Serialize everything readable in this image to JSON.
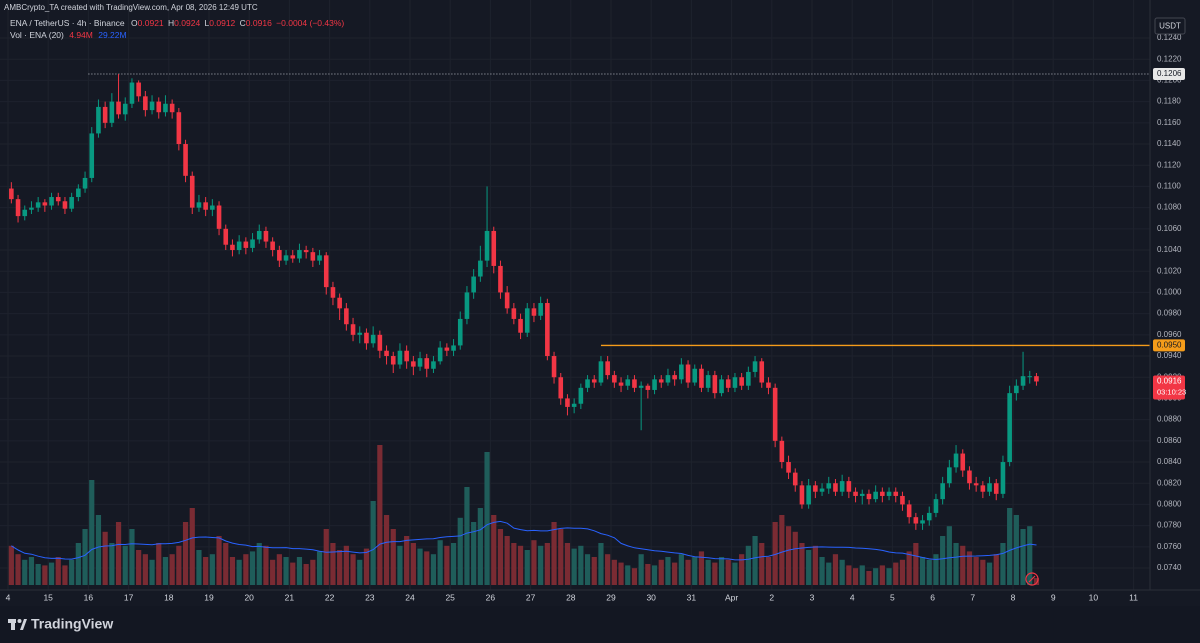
{
  "header": {
    "attribution": "AMBCrypto_TA created with TradingView.com, Apr 08, 2026 12:49 UTC"
  },
  "footer": {
    "brand": "TradingView"
  },
  "chart_data": {
    "type": "candlestick",
    "legend": {
      "symbol": "ENA / TetherUS · 4h · Binance",
      "open_key": "O",
      "open": "0.0921",
      "high_key": "H",
      "high": "0.0924",
      "low_key": "L",
      "low": "0.0912",
      "close_key": "C",
      "close": "0.0916",
      "change": "−0.0004 (−0.43%)"
    },
    "volume_legend": {
      "name": "Vol · ENA (20)",
      "value": "4.94M",
      "ma": "29.22M"
    },
    "currency": "USDT",
    "up_color": "#089981",
    "down_color": "#f23645",
    "volume_up_color": "#1f5d5a",
    "volume_down_color": "#7a2b33",
    "ma_color": "#2962ff",
    "high_line": {
      "value": 0.1206,
      "label": "0.1206"
    },
    "resistance": {
      "value": 0.095,
      "label": "0.0950",
      "color": "#f59c1a"
    },
    "last_price": {
      "value": 0.0916,
      "label": "0.0916",
      "countdown": "03:10:23"
    },
    "x_labels": [
      "4",
      "15",
      "16",
      "17",
      "18",
      "19",
      "20",
      "21",
      "22",
      "23",
      "24",
      "25",
      "26",
      "27",
      "28",
      "29",
      "30",
      "31",
      "Apr",
      "2",
      "3",
      "4",
      "5",
      "6",
      "7",
      "8",
      "9",
      "10",
      "11"
    ],
    "ylim": [
      0.0724,
      0.1257
    ],
    "yticks": [
      {
        "value": 0.124,
        "label": "0.1240"
      },
      {
        "value": 0.122,
        "label": "0.1220"
      },
      {
        "value": 0.12,
        "label": "0.1200"
      },
      {
        "value": 0.118,
        "label": "0.1180"
      },
      {
        "value": 0.116,
        "label": "0.1160"
      },
      {
        "value": 0.114,
        "label": "0.1140"
      },
      {
        "value": 0.112,
        "label": "0.1120"
      },
      {
        "value": 0.11,
        "label": "0.1100"
      },
      {
        "value": 0.108,
        "label": "0.1080"
      },
      {
        "value": 0.106,
        "label": "0.1060"
      },
      {
        "value": 0.104,
        "label": "0.1040"
      },
      {
        "value": 0.102,
        "label": "0.1020"
      },
      {
        "value": 0.1,
        "label": "0.1000"
      },
      {
        "value": 0.098,
        "label": "0.0980"
      },
      {
        "value": 0.096,
        "label": "0.0960"
      },
      {
        "value": 0.094,
        "label": "0.0940"
      },
      {
        "value": 0.092,
        "label": "0.0920"
      },
      {
        "value": 0.09,
        "label": "0.0900"
      },
      {
        "value": 0.088,
        "label": "0.0880"
      },
      {
        "value": 0.086,
        "label": "0.0860"
      },
      {
        "value": 0.084,
        "label": "0.0840"
      },
      {
        "value": 0.082,
        "label": "0.0820"
      },
      {
        "value": 0.08,
        "label": "0.0800"
      },
      {
        "value": 0.078,
        "label": "0.0780"
      },
      {
        "value": 0.076,
        "label": "0.0760"
      },
      {
        "value": 0.074,
        "label": "0.0740"
      }
    ],
    "candles": [
      [
        0.1098,
        0.1104,
        0.1084,
        0.1088
      ],
      [
        0.1088,
        0.1092,
        0.1066,
        0.1072
      ],
      [
        0.1072,
        0.1082,
        0.1068,
        0.1078
      ],
      [
        0.1078,
        0.1086,
        0.1074,
        0.108
      ],
      [
        0.108,
        0.109,
        0.1076,
        0.1085
      ],
      [
        0.1085,
        0.1088,
        0.1076,
        0.1082
      ],
      [
        0.1082,
        0.1094,
        0.1078,
        0.109
      ],
      [
        0.109,
        0.1094,
        0.1082,
        0.1086
      ],
      [
        0.1086,
        0.109,
        0.1074,
        0.1079
      ],
      [
        0.1079,
        0.1094,
        0.1076,
        0.109
      ],
      [
        0.109,
        0.1102,
        0.1086,
        0.1098
      ],
      [
        0.1098,
        0.1114,
        0.1094,
        0.1108
      ],
      [
        0.1108,
        0.1156,
        0.1104,
        0.115
      ],
      [
        0.115,
        0.1182,
        0.1146,
        0.1175
      ],
      [
        0.1175,
        0.118,
        0.1155,
        0.116
      ],
      [
        0.116,
        0.1188,
        0.1156,
        0.118
      ],
      [
        0.118,
        0.1206,
        0.1164,
        0.1168
      ],
      [
        0.1168,
        0.1184,
        0.1162,
        0.1178
      ],
      [
        0.1178,
        0.1202,
        0.1174,
        0.1198
      ],
      [
        0.1198,
        0.12,
        0.118,
        0.1185
      ],
      [
        0.1185,
        0.119,
        0.1166,
        0.1172
      ],
      [
        0.1172,
        0.1186,
        0.1168,
        0.118
      ],
      [
        0.118,
        0.1184,
        0.1164,
        0.117
      ],
      [
        0.117,
        0.1186,
        0.1166,
        0.1178
      ],
      [
        0.1178,
        0.1182,
        0.1164,
        0.117
      ],
      [
        0.117,
        0.1174,
        0.1134,
        0.114
      ],
      [
        0.114,
        0.1144,
        0.1104,
        0.111
      ],
      [
        0.111,
        0.1114,
        0.1074,
        0.108
      ],
      [
        0.108,
        0.1092,
        0.1076,
        0.1085
      ],
      [
        0.1085,
        0.109,
        0.1072,
        0.1078
      ],
      [
        0.1078,
        0.1088,
        0.1072,
        0.1082
      ],
      [
        0.1082,
        0.1086,
        0.1054,
        0.106
      ],
      [
        0.106,
        0.1064,
        0.104,
        0.1045
      ],
      [
        0.1045,
        0.105,
        0.1034,
        0.104
      ],
      [
        0.104,
        0.1054,
        0.1036,
        0.1048
      ],
      [
        0.1048,
        0.1052,
        0.1036,
        0.1042
      ],
      [
        0.1042,
        0.1056,
        0.1038,
        0.105
      ],
      [
        0.105,
        0.1064,
        0.1046,
        0.1058
      ],
      [
        0.1058,
        0.1062,
        0.1042,
        0.1048
      ],
      [
        0.1048,
        0.1052,
        0.1034,
        0.104
      ],
      [
        0.104,
        0.1044,
        0.1024,
        0.103
      ],
      [
        0.103,
        0.104,
        0.1026,
        0.1035
      ],
      [
        0.1035,
        0.104,
        0.1028,
        0.1032
      ],
      [
        0.1032,
        0.1046,
        0.1028,
        0.104
      ],
      [
        0.104,
        0.1044,
        0.1032,
        0.1038
      ],
      [
        0.1038,
        0.1042,
        0.1024,
        0.103
      ],
      [
        0.103,
        0.104,
        0.1026,
        0.1035
      ],
      [
        0.1035,
        0.1038,
        0.0998,
        0.1005
      ],
      [
        0.1005,
        0.101,
        0.0988,
        0.0995
      ],
      [
        0.0995,
        0.0999,
        0.0974,
        0.0985
      ],
      [
        0.0985,
        0.099,
        0.0964,
        0.097
      ],
      [
        0.097,
        0.0976,
        0.0954,
        0.096
      ],
      [
        0.096,
        0.0968,
        0.0952,
        0.0962
      ],
      [
        0.0962,
        0.0966,
        0.0946,
        0.0952
      ],
      [
        0.0952,
        0.0968,
        0.0948,
        0.096
      ],
      [
        0.096,
        0.0964,
        0.0938,
        0.0945
      ],
      [
        0.0945,
        0.095,
        0.0932,
        0.094
      ],
      [
        0.094,
        0.0944,
        0.0924,
        0.0932
      ],
      [
        0.0932,
        0.0952,
        0.0928,
        0.0945
      ],
      [
        0.0945,
        0.095,
        0.0928,
        0.0935
      ],
      [
        0.0935,
        0.094,
        0.0922,
        0.093
      ],
      [
        0.093,
        0.0944,
        0.0926,
        0.0938
      ],
      [
        0.0938,
        0.0942,
        0.092,
        0.0928
      ],
      [
        0.0928,
        0.094,
        0.0924,
        0.0935
      ],
      [
        0.0935,
        0.0954,
        0.0932,
        0.0948
      ],
      [
        0.0948,
        0.0952,
        0.094,
        0.0945
      ],
      [
        0.0945,
        0.0956,
        0.094,
        0.095
      ],
      [
        0.095,
        0.0982,
        0.0946,
        0.0975
      ],
      [
        0.0975,
        0.1006,
        0.097,
        0.1
      ],
      [
        0.1,
        0.1022,
        0.0994,
        0.1015
      ],
      [
        0.1015,
        0.1044,
        0.101,
        0.103
      ],
      [
        0.103,
        0.11,
        0.1024,
        0.1058
      ],
      [
        0.1058,
        0.1062,
        0.1018,
        0.1025
      ],
      [
        0.1025,
        0.103,
        0.0994,
        0.1
      ],
      [
        0.1,
        0.1006,
        0.098,
        0.0985
      ],
      [
        0.0985,
        0.099,
        0.097,
        0.0975
      ],
      [
        0.0975,
        0.098,
        0.0956,
        0.0962
      ],
      [
        0.0962,
        0.099,
        0.0958,
        0.0985
      ],
      [
        0.0985,
        0.099,
        0.0972,
        0.0978
      ],
      [
        0.0978,
        0.0996,
        0.0974,
        0.099
      ],
      [
        0.099,
        0.0994,
        0.0936,
        0.094
      ],
      [
        0.094,
        0.0944,
        0.0914,
        0.092
      ],
      [
        0.092,
        0.0924,
        0.0894,
        0.09
      ],
      [
        0.09,
        0.0904,
        0.0884,
        0.0892
      ],
      [
        0.0892,
        0.09,
        0.0886,
        0.0895
      ],
      [
        0.0895,
        0.0914,
        0.089,
        0.091
      ],
      [
        0.091,
        0.0922,
        0.0906,
        0.0918
      ],
      [
        0.0918,
        0.0922,
        0.091,
        0.0915
      ],
      [
        0.0915,
        0.094,
        0.0912,
        0.0935
      ],
      [
        0.0935,
        0.094,
        0.0918,
        0.0922
      ],
      [
        0.0922,
        0.0926,
        0.091,
        0.0915
      ],
      [
        0.0915,
        0.092,
        0.0906,
        0.0912
      ],
      [
        0.0912,
        0.0922,
        0.0908,
        0.0918
      ],
      [
        0.0918,
        0.0922,
        0.0906,
        0.091
      ],
      [
        0.091,
        0.0916,
        0.087,
        0.0912
      ],
      [
        0.0912,
        0.0914,
        0.09,
        0.0908
      ],
      [
        0.0908,
        0.0922,
        0.0904,
        0.0918
      ],
      [
        0.0918,
        0.0922,
        0.091,
        0.0915
      ],
      [
        0.0915,
        0.0928,
        0.0912,
        0.0922
      ],
      [
        0.0922,
        0.0926,
        0.0912,
        0.0918
      ],
      [
        0.0918,
        0.0938,
        0.0914,
        0.0932
      ],
      [
        0.0932,
        0.0936,
        0.091,
        0.0915
      ],
      [
        0.0915,
        0.0932,
        0.0912,
        0.0928
      ],
      [
        0.0928,
        0.0932,
        0.0906,
        0.091
      ],
      [
        0.091,
        0.0926,
        0.0906,
        0.0922
      ],
      [
        0.0922,
        0.0926,
        0.09,
        0.0905
      ],
      [
        0.0905,
        0.0922,
        0.0902,
        0.0918
      ],
      [
        0.0918,
        0.0922,
        0.0906,
        0.091
      ],
      [
        0.091,
        0.0924,
        0.0906,
        0.092
      ],
      [
        0.092,
        0.0924,
        0.0908,
        0.0912
      ],
      [
        0.0912,
        0.093,
        0.0908,
        0.0925
      ],
      [
        0.0925,
        0.094,
        0.092,
        0.0935
      ],
      [
        0.0935,
        0.0938,
        0.091,
        0.0915
      ],
      [
        0.0915,
        0.092,
        0.0904,
        0.091
      ],
      [
        0.091,
        0.0914,
        0.0854,
        0.086
      ],
      [
        0.086,
        0.0864,
        0.0834,
        0.084
      ],
      [
        0.084,
        0.0846,
        0.0824,
        0.083
      ],
      [
        0.083,
        0.0834,
        0.0812,
        0.0818
      ],
      [
        0.0818,
        0.0822,
        0.0796,
        0.08
      ],
      [
        0.08,
        0.0824,
        0.0796,
        0.0818
      ],
      [
        0.0818,
        0.0822,
        0.0806,
        0.0812
      ],
      [
        0.0812,
        0.082,
        0.0808,
        0.0815
      ],
      [
        0.0815,
        0.0826,
        0.081,
        0.082
      ],
      [
        0.082,
        0.0824,
        0.0808,
        0.0812
      ],
      [
        0.0812,
        0.0828,
        0.0808,
        0.0822
      ],
      [
        0.0822,
        0.0826,
        0.0806,
        0.0812
      ],
      [
        0.0812,
        0.0816,
        0.0802,
        0.0808
      ],
      [
        0.0808,
        0.0814,
        0.08,
        0.081
      ],
      [
        0.081,
        0.0814,
        0.08,
        0.0805
      ],
      [
        0.0805,
        0.0818,
        0.0802,
        0.0812
      ],
      [
        0.0812,
        0.0816,
        0.0802,
        0.0808
      ],
      [
        0.0808,
        0.0816,
        0.0804,
        0.0812
      ],
      [
        0.0812,
        0.0816,
        0.0802,
        0.0808
      ],
      [
        0.0808,
        0.0812,
        0.0794,
        0.08
      ],
      [
        0.08,
        0.0804,
        0.0782,
        0.0788
      ],
      [
        0.0788,
        0.0792,
        0.0776,
        0.0782
      ],
      [
        0.0782,
        0.079,
        0.0776,
        0.0785
      ],
      [
        0.0785,
        0.0798,
        0.078,
        0.0792
      ],
      [
        0.0792,
        0.081,
        0.0788,
        0.0805
      ],
      [
        0.0805,
        0.0826,
        0.08,
        0.082
      ],
      [
        0.082,
        0.0842,
        0.0816,
        0.0835
      ],
      [
        0.0835,
        0.0856,
        0.083,
        0.0848
      ],
      [
        0.0848,
        0.0852,
        0.0826,
        0.0832
      ],
      [
        0.0832,
        0.0836,
        0.0814,
        0.082
      ],
      [
        0.082,
        0.0826,
        0.0812,
        0.0818
      ],
      [
        0.0818,
        0.0822,
        0.0806,
        0.0812
      ],
      [
        0.0812,
        0.0826,
        0.0808,
        0.082
      ],
      [
        0.082,
        0.0824,
        0.0804,
        0.081
      ],
      [
        0.081,
        0.0846,
        0.0806,
        0.084
      ],
      [
        0.084,
        0.0912,
        0.0836,
        0.0905
      ],
      [
        0.0905,
        0.0918,
        0.0898,
        0.0912
      ],
      [
        0.0912,
        0.0944,
        0.0908,
        0.0921
      ],
      [
        0.0921,
        0.0926,
        0.0914,
        0.0921
      ],
      [
        0.0921,
        0.0924,
        0.0912,
        0.0916
      ]
    ],
    "volumes": [
      28,
      22,
      18,
      20,
      15,
      14,
      16,
      20,
      14,
      18,
      30,
      40,
      75,
      50,
      38,
      30,
      45,
      28,
      40,
      25,
      22,
      18,
      30,
      20,
      22,
      28,
      45,
      55,
      25,
      20,
      22,
      35,
      30,
      20,
      18,
      22,
      24,
      30,
      28,
      18,
      22,
      20,
      16,
      20,
      15,
      18,
      24,
      40,
      30,
      25,
      28,
      22,
      18,
      26,
      60,
      100,
      50,
      40,
      28,
      35,
      30,
      26,
      24,
      22,
      32,
      28,
      30,
      48,
      70,
      45,
      55,
      95,
      50,
      40,
      35,
      30,
      28,
      25,
      32,
      28,
      30,
      45,
      40,
      30,
      26,
      28,
      22,
      20,
      30,
      22,
      18,
      16,
      14,
      12,
      22,
      15,
      14,
      18,
      20,
      16,
      22,
      18,
      20,
      24,
      18,
      16,
      20,
      18,
      16,
      22,
      28,
      35,
      30,
      20,
      45,
      50,
      42,
      38,
      30,
      25,
      28,
      20,
      16,
      22,
      18,
      14,
      12,
      14,
      10,
      12,
      14,
      12,
      16,
      18,
      24,
      30,
      20,
      18,
      22,
      35,
      42,
      30,
      28,
      24,
      20,
      18,
      16,
      22,
      30,
      55,
      50,
      40,
      42,
      4.94
    ]
  }
}
